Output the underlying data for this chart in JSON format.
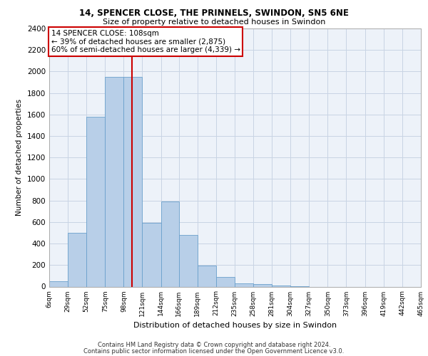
{
  "title_line1": "14, SPENCER CLOSE, THE PRINNELS, SWINDON, SN5 6NE",
  "title_line2": "Size of property relative to detached houses in Swindon",
  "xlabel": "Distribution of detached houses by size in Swindon",
  "ylabel": "Number of detached properties",
  "footnote1": "Contains HM Land Registry data © Crown copyright and database right 2024.",
  "footnote2": "Contains public sector information licensed under the Open Government Licence v3.0.",
  "annotation_line1": "14 SPENCER CLOSE: 108sqm",
  "annotation_line2": "← 39% of detached houses are smaller (2,875)",
  "annotation_line3": "60% of semi-detached houses are larger (4,339) →",
  "bar_color": "#b8cfe8",
  "bar_edge_color": "#6aa0cc",
  "vline_color": "#cc0000",
  "annotation_box_edge_color": "#cc0000",
  "grid_color": "#c8d4e4",
  "background_color": "#edf2f9",
  "bin_labels": [
    "6sqm",
    "29sqm",
    "52sqm",
    "75sqm",
    "98sqm",
    "121sqm",
    "144sqm",
    "166sqm",
    "189sqm",
    "212sqm",
    "235sqm",
    "258sqm",
    "281sqm",
    "304sqm",
    "327sqm",
    "350sqm",
    "373sqm",
    "396sqm",
    "419sqm",
    "442sqm",
    "465sqm"
  ],
  "bin_edges": [
    6,
    29,
    52,
    75,
    98,
    121,
    144,
    166,
    189,
    212,
    235,
    258,
    281,
    304,
    327,
    350,
    373,
    396,
    419,
    442,
    465
  ],
  "bar_heights": [
    50,
    500,
    1580,
    1950,
    1950,
    590,
    790,
    480,
    195,
    90,
    30,
    25,
    10,
    5,
    0,
    0,
    0,
    0,
    0,
    0
  ],
  "vline_x": 108,
  "ylim": [
    0,
    2400
  ],
  "yticks": [
    0,
    200,
    400,
    600,
    800,
    1000,
    1200,
    1400,
    1600,
    1800,
    2000,
    2200,
    2400
  ],
  "title1_fontsize": 8.5,
  "title2_fontsize": 8.0,
  "ylabel_fontsize": 7.5,
  "xlabel_fontsize": 8.0,
  "ytick_fontsize": 7.5,
  "xtick_fontsize": 6.5,
  "annot_fontsize": 7.5,
  "footnote_fontsize": 6.0
}
